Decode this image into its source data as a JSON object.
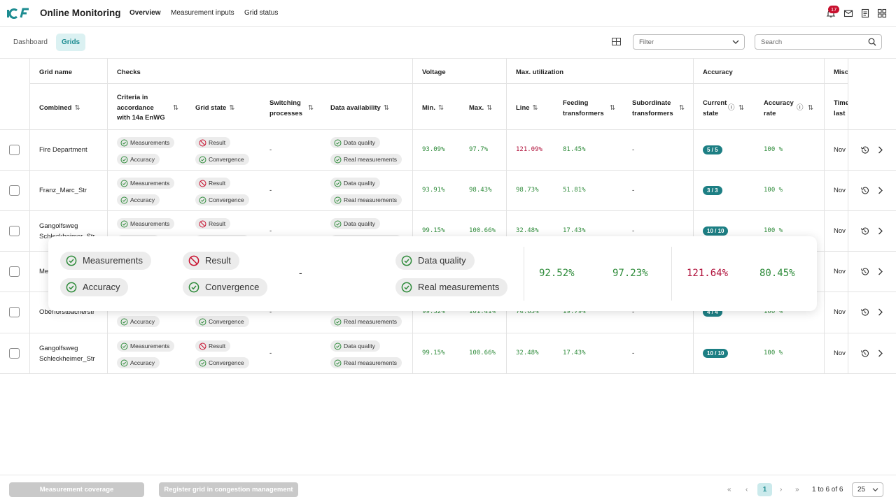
{
  "app": {
    "title": "Online Monitoring",
    "notifications_count": "17"
  },
  "nav": [
    "Overview",
    "Measurement inputs",
    "Grid status"
  ],
  "subtabs": [
    "Dashboard",
    "Grids"
  ],
  "filter": {
    "placeholder": "Filter"
  },
  "search": {
    "placeholder": "Search"
  },
  "header_groups": {
    "grid_name": "Grid name",
    "checks": "Checks",
    "voltage": "Voltage",
    "max_util": "Max. utilization",
    "accuracy": "Accuracy",
    "misc": "Misc"
  },
  "columns": {
    "combined": "Combined",
    "criteria": [
      "Criteria in",
      "accordance",
      "with 14a EnWG"
    ],
    "grid_state": "Grid state",
    "switching": [
      "Switching",
      "processes"
    ],
    "data_availability": "Data availability",
    "min": "Min.",
    "max": "Max.",
    "line": "Line",
    "feeding": [
      "Feeding",
      "transformers"
    ],
    "subordinate": [
      "Subordinate",
      "transformers"
    ],
    "current_state": [
      "Current",
      "state"
    ],
    "accuracy_rate": [
      "Accuracy",
      "rate"
    ],
    "time": [
      "Time",
      "last"
    ]
  },
  "chips": {
    "measurements": "Measurements",
    "accuracy": "Accuracy",
    "result": "Result",
    "convergence": "Convergence",
    "data_quality": "Data quality",
    "real_measurements": "Real measurements"
  },
  "rows": [
    {
      "name": [
        "Fire Department"
      ],
      "switching": "-",
      "min": "93.09%",
      "max": "97.7%",
      "line": "121.09%",
      "line_red": true,
      "feeding": "81.45%",
      "subordinate": "-",
      "state": "5 / 5",
      "rate": "100 %",
      "time": "Nov"
    },
    {
      "name": [
        "Franz_Marc_Str"
      ],
      "switching": "-",
      "min": "93.91%",
      "max": "98.43%",
      "line": "98.73%",
      "line_red": false,
      "feeding": "51.81%",
      "subordinate": "-",
      "state": "3 / 3",
      "rate": "100 %",
      "time": "Nov"
    },
    {
      "name": [
        "Gangolfsweg",
        "Schleckheimer_Str"
      ],
      "switching": "-",
      "min": "99.15%",
      "max": "100.66%",
      "line": "32.48%",
      "line_red": false,
      "feeding": "17.43%",
      "subordinate": "-",
      "state": "10 / 10",
      "rate": "100 %",
      "time": "Nov"
    },
    {
      "name": [
        "Me"
      ],
      "switching": "",
      "min": "",
      "max": "",
      "line": "",
      "line_red": false,
      "feeding": "",
      "subordinate": "",
      "state": "",
      "rate": "",
      "time": "Nov"
    },
    {
      "name": [
        "Oberforstbacherstr"
      ],
      "switching": "-",
      "min": "99.32%",
      "max": "101.41%",
      "line": "74.65%",
      "line_red": false,
      "feeding": "19.79%",
      "subordinate": "-",
      "state": "4 / 4",
      "rate": "100 %",
      "time": "Nov"
    },
    {
      "name": [
        "Gangolfsweg",
        "Schleckheimer_Str"
      ],
      "switching": "-",
      "min": "99.15%",
      "max": "100.66%",
      "line": "32.48%",
      "line_red": false,
      "feeding": "17.43%",
      "subordinate": "-",
      "state": "10 / 10",
      "rate": "100 %",
      "time": "Nov"
    }
  ],
  "popup": {
    "switching": "-",
    "min": "92.52%",
    "max": "97.23%",
    "line": "121.64%",
    "feeding": "80.45%"
  },
  "footer": {
    "coverage_button": "Measurement coverage",
    "register_button": "Register grid in congestion management",
    "page": "1",
    "range": "1 to 6 of 6",
    "page_size": "25"
  },
  "colors": {
    "accent": "#1d8c91",
    "ok_green": "#2e8b3a",
    "error_red": "#b0103a",
    "badge_red": "#c8102e"
  }
}
